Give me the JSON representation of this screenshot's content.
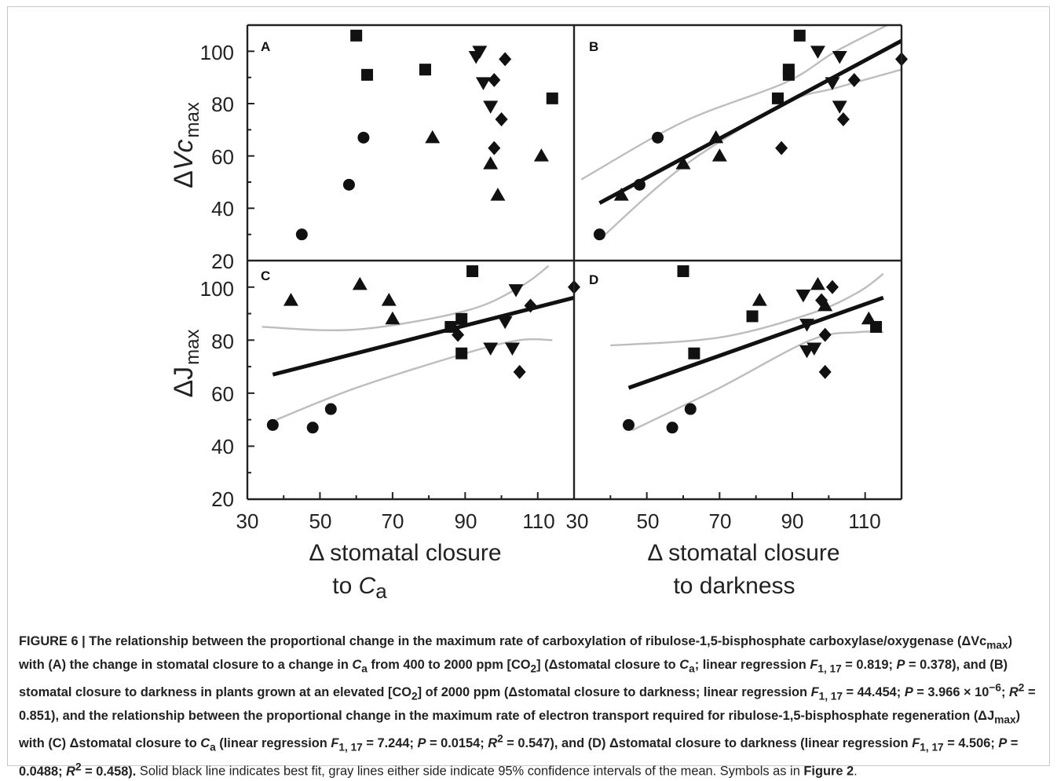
{
  "chart_data": [
    {
      "panel": "A",
      "type": "scatter",
      "xlabel": "Δ stomatal closure to C_a",
      "ylabel": "ΔVc_max",
      "xlim": [
        30,
        120
      ],
      "ylim": [
        20,
        110
      ],
      "x_ticks": [
        30,
        50,
        70,
        90,
        110
      ],
      "y_ticks": [
        20,
        40,
        60,
        80,
        100
      ],
      "fit": null,
      "series": [
        {
          "marker": "circle",
          "points": [
            [
              45,
              30
            ],
            [
              58,
              49
            ],
            [
              62,
              67
            ]
          ]
        },
        {
          "marker": "square",
          "points": [
            [
              60,
              106
            ],
            [
              63,
              91
            ],
            [
              79,
              93
            ],
            [
              114,
              82
            ]
          ]
        },
        {
          "marker": "triangle-up",
          "points": [
            [
              81,
              67
            ],
            [
              97,
              57
            ],
            [
              99,
              45
            ],
            [
              111,
              60
            ]
          ]
        },
        {
          "marker": "triangle-down",
          "points": [
            [
              93,
              98
            ],
            [
              94,
              100
            ],
            [
              95,
              88
            ],
            [
              97,
              79
            ]
          ]
        },
        {
          "marker": "diamond",
          "points": [
            [
              101,
              97
            ],
            [
              98,
              89
            ],
            [
              100,
              74
            ],
            [
              98,
              63
            ]
          ]
        }
      ]
    },
    {
      "panel": "B",
      "type": "scatter",
      "xlabel": "Δ stomatal closure to darkness",
      "ylabel": "ΔVc_max",
      "xlim": [
        30,
        120
      ],
      "ylim": [
        20,
        110
      ],
      "x_ticks": [
        30,
        50,
        70,
        90,
        110
      ],
      "y_ticks": [
        20,
        40,
        60,
        80,
        100
      ],
      "fit": {
        "line": [
          [
            37,
            42
          ],
          [
            120,
            104
          ]
        ],
        "ci_upper": [
          [
            32,
            51
          ],
          [
            60,
            73
          ],
          [
            88,
            88
          ],
          [
            102,
            100
          ],
          [
            119,
            112
          ]
        ],
        "ci_lower": [
          [
            37,
            28
          ],
          [
            60,
            56
          ],
          [
            88,
            80
          ],
          [
            102,
            86
          ],
          [
            120,
            93
          ]
        ]
      },
      "series": [
        {
          "marker": "circle",
          "points": [
            [
              37,
              30
            ],
            [
              48,
              49
            ],
            [
              53,
              67
            ]
          ]
        },
        {
          "marker": "square",
          "points": [
            [
              86,
              82
            ],
            [
              89,
              93
            ],
            [
              89,
              91
            ],
            [
              92,
              106
            ]
          ]
        },
        {
          "marker": "triangle-up",
          "points": [
            [
              43,
              45
            ],
            [
              60,
              57
            ],
            [
              69,
              67
            ],
            [
              70,
              60
            ]
          ]
        },
        {
          "marker": "triangle-down",
          "points": [
            [
              97,
              100
            ],
            [
              101,
              88
            ],
            [
              103,
              98
            ],
            [
              103,
              79
            ]
          ]
        },
        {
          "marker": "diamond",
          "points": [
            [
              120,
              97
            ],
            [
              107,
              89
            ],
            [
              104,
              74
            ],
            [
              87,
              63
            ]
          ]
        }
      ]
    },
    {
      "panel": "C",
      "type": "scatter",
      "xlabel": "Δ stomatal closure to C_a",
      "ylabel": "ΔJ_max",
      "xlim": [
        30,
        120
      ],
      "ylim": [
        20,
        110
      ],
      "x_ticks": [
        30,
        50,
        70,
        90,
        110
      ],
      "y_ticks": [
        20,
        40,
        60,
        80,
        100
      ],
      "fit": {
        "line": [
          [
            37,
            67
          ],
          [
            120,
            96
          ]
        ],
        "ci_upper": [
          [
            34,
            85
          ],
          [
            60,
            84
          ],
          [
            90,
            91
          ],
          [
            105,
            100
          ],
          [
            113,
            108
          ]
        ],
        "ci_lower": [
          [
            38,
            50
          ],
          [
            60,
            62
          ],
          [
            90,
            75
          ],
          [
            105,
            80
          ],
          [
            114,
            80
          ]
        ]
      },
      "series": [
        {
          "marker": "circle",
          "points": [
            [
              37,
              48
            ],
            [
              48,
              47
            ],
            [
              53,
              54
            ]
          ]
        },
        {
          "marker": "square",
          "points": [
            [
              86,
              85
            ],
            [
              89,
              88
            ],
            [
              89,
              75
            ],
            [
              92,
              106
            ]
          ]
        },
        {
          "marker": "triangle-up",
          "points": [
            [
              42,
              95
            ],
            [
              61,
              101
            ],
            [
              69,
              95
            ],
            [
              70,
              88
            ]
          ]
        },
        {
          "marker": "triangle-down",
          "points": [
            [
              97,
              77
            ],
            [
              101,
              87
            ],
            [
              103,
              77
            ],
            [
              104,
              99
            ]
          ]
        },
        {
          "marker": "diamond",
          "points": [
            [
              120,
              100
            ],
            [
              108,
              93
            ],
            [
              105,
              68
            ],
            [
              88,
              82
            ]
          ]
        }
      ]
    },
    {
      "panel": "D",
      "type": "scatter",
      "xlabel": "Δ stomatal closure to darkness",
      "ylabel": "ΔJ_max",
      "xlim": [
        30,
        120
      ],
      "ylim": [
        20,
        110
      ],
      "x_ticks": [
        30,
        50,
        70,
        90,
        110
      ],
      "y_ticks": [
        20,
        40,
        60,
        80,
        100
      ],
      "fit": {
        "line": [
          [
            45,
            62
          ],
          [
            115,
            96
          ]
        ],
        "ci_upper": [
          [
            40,
            78
          ],
          [
            70,
            81
          ],
          [
            95,
            90
          ],
          [
            108,
            98
          ],
          [
            115,
            105
          ]
        ],
        "ci_lower": [
          [
            46,
            46
          ],
          [
            70,
            62
          ],
          [
            95,
            80
          ],
          [
            108,
            83
          ],
          [
            115,
            83
          ]
        ]
      },
      "series": [
        {
          "marker": "circle",
          "points": [
            [
              45,
              48
            ],
            [
              57,
              47
            ],
            [
              62,
              54
            ]
          ]
        },
        {
          "marker": "square",
          "points": [
            [
              60,
              106
            ],
            [
              63,
              75
            ],
            [
              79,
              89
            ],
            [
              113,
              85
            ]
          ]
        },
        {
          "marker": "triangle-up",
          "points": [
            [
              81,
              95
            ],
            [
              97,
              101
            ],
            [
              99,
              93
            ],
            [
              111,
              88
            ]
          ]
        },
        {
          "marker": "triangle-down",
          "points": [
            [
              93,
              97
            ],
            [
              94,
              86
            ],
            [
              94,
              76
            ],
            [
              96,
              77
            ]
          ]
        },
        {
          "marker": "diamond",
          "points": [
            [
              101,
              100
            ],
            [
              98,
              95
            ],
            [
              99,
              82
            ],
            [
              99,
              68
            ]
          ]
        }
      ]
    }
  ],
  "figure_text": {
    "panel_labels": [
      "A",
      "B",
      "C",
      "D"
    ],
    "x_ticks_left": [
      "30",
      "50",
      "70",
      "90",
      "110"
    ],
    "x_ticks_right": [
      "30",
      "50",
      "70",
      "90",
      "110"
    ],
    "y_ticks_top": [
      "100",
      "80",
      "60",
      "40",
      "20"
    ],
    "y_ticks_bottom": [
      "100",
      "80",
      "60",
      "40",
      "20"
    ],
    "ylabel_top_delta": "Δ",
    "ylabel_top_main": "Vc",
    "ylabel_top_sub": "max",
    "ylabel_bottom_delta": "Δ",
    "ylabel_bottom_main": "J",
    "ylabel_bottom_sub": "max",
    "xlabel_left_line1": "Δ stomatal closure",
    "xlabel_left_line2_prefix": "to ",
    "xlabel_left_line2_var": "C",
    "xlabel_left_line2_sub": "a",
    "xlabel_right_line1": "Δ stomatal closure",
    "xlabel_right_line2": "to darkness"
  },
  "caption": {
    "lead": "FIGURE 6 | The relationship between the proportional change in the maximum rate of carboxylation of ribulose-1,5-bisphosphate carboxylase/oxygenase (ΔVc",
    "s1": "max",
    "t1": ") with (A) the change in stomatal closure to a change in ",
    "ca1": "C",
    "ca1s": "a",
    "t2": " from 400 to 2000 ppm [CO",
    "co2a": "2",
    "t3": "] (Δstomatal closure to ",
    "ca2": "C",
    "ca2s": "a",
    "t4": "; linear regression ",
    "f1": "F",
    "f1s": "1, 17",
    "t5": " = 0.819; ",
    "p1": "P",
    "t6": " = 0.378), and (B) stomatal closure to darkness in plants grown at an elevated [CO",
    "co2b": "2",
    "t7": "] of 2000 ppm (Δstomatal closure to darkness; linear regression ",
    "f2": "F",
    "f2s": "1, 17",
    "t8": " = 44.454; ",
    "p2": "P",
    "t9": " = 3.966 × 10",
    "exp1": "−6",
    "t10": "; ",
    "r1": "R",
    "r1e": "2",
    "t11": " = 0.851), and the relationship between the proportional change in the maximum rate of electron transport required for ribulose-1,5-bisphosphate regeneration (ΔJ",
    "s2": "max",
    "t12": ") with (C) Δstomatal closure to ",
    "ca3": "C",
    "ca3s": "a",
    "t13": " (linear regression ",
    "f3": "F",
    "f3s": "1, 17",
    "t14": " = 7.244; ",
    "p3": "P",
    "t15": " = 0.0154; ",
    "r2": "R",
    "r2e": "2",
    "t16": " = 0.547), and (D) Δstomatal closure to darkness (linear regression ",
    "f4": "F",
    "f4s": "1, 17",
    "t17": " = 4.506; ",
    "p4": "P",
    "t18": " = 0.0488; ",
    "r3": "R",
    "r3e": "2",
    "t19": " = 0.458).",
    "plain": " Solid black line indicates best fit, gray lines either side indicate 95% confidence intervals of the mean. Symbols as in ",
    "figref": "Figure 2",
    "end": "."
  }
}
